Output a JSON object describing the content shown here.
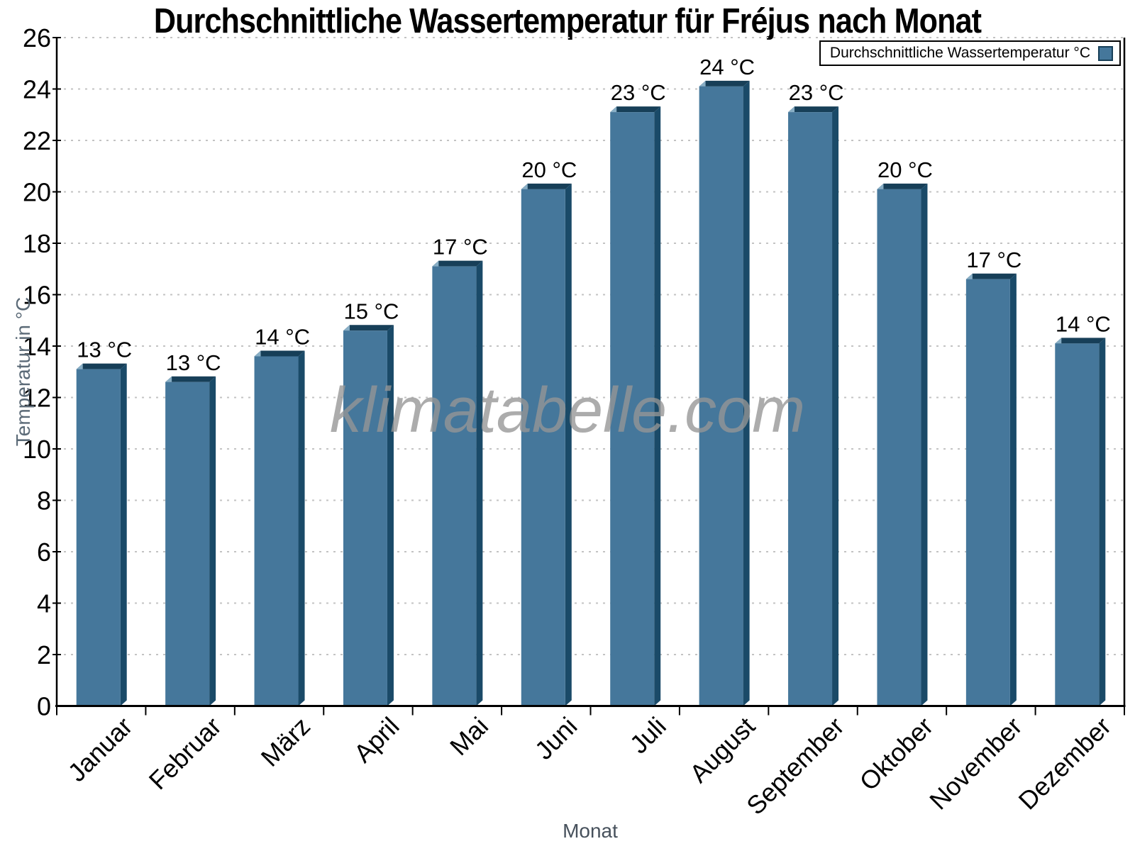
{
  "title": "Durchschnittliche Wassertemperatur für Fréjus nach Monat",
  "watermark": "klimatabelle.com",
  "legend": {
    "label": "Durchschnittliche Wassertemperatur °C"
  },
  "colors": {
    "bar_face": "#45779b",
    "bar_top": "#173f58",
    "bar_side": "#1a4a68",
    "bar_highlight": "#88aec5",
    "grid": "#c3c3c3",
    "axis": "#000000",
    "tick_text": "#000000",
    "y_title_text": "#5b6a77",
    "x_title_text": "#47515c"
  },
  "chart_data": {
    "type": "bar",
    "title": "Durchschnittliche Wassertemperatur für Fréjus nach Monat",
    "categories": [
      "Januar",
      "Februar",
      "März",
      "April",
      "Mai",
      "Juni",
      "Juli",
      "August",
      "September",
      "Oktober",
      "November",
      "Dezember"
    ],
    "values": [
      13.1,
      12.6,
      13.6,
      14.6,
      17.1,
      20.1,
      23.1,
      24.1,
      23.1,
      20.1,
      16.6,
      14.1
    ],
    "bar_labels": [
      "13 °C",
      "13 °C",
      "14 °C",
      "15 °C",
      "17 °C",
      "20 °C",
      "23 °C",
      "24 °C",
      "23 °C",
      "20 °C",
      "17 °C",
      "14 °C"
    ],
    "xlabel": "Monat",
    "ylabel": "Temperatur in °C",
    "ylim": [
      0,
      26
    ],
    "ytick_step": 2,
    "grid": "horizontal-dashed",
    "legend": [
      "Durchschnittliche Wassertemperatur °C"
    ],
    "legend_position": "top-right",
    "bar_style": "3d-extruded"
  }
}
